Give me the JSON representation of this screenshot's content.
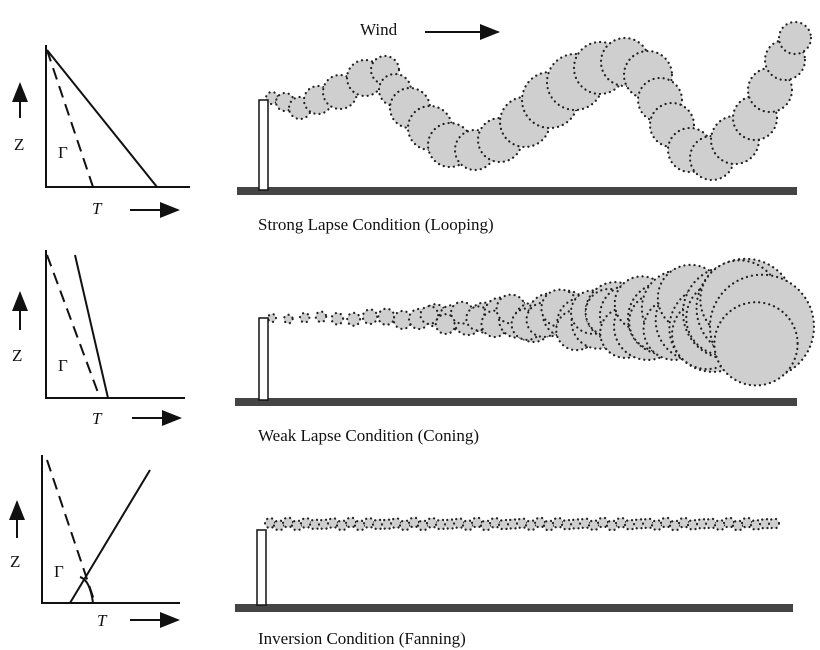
{
  "wind_label": "Wind",
  "panels": [
    {
      "z_label": "Z",
      "t_label": "T",
      "gamma_label": "Γ",
      "caption": "Strong Lapse Condition (Looping)"
    },
    {
      "z_label": "Z",
      "t_label": "T",
      "gamma_label": "Γ",
      "caption": "Weak Lapse Condition (Coning)"
    },
    {
      "z_label": "Z",
      "t_label": "T",
      "gamma_label": "Γ",
      "caption": "Inversion Condition (Fanning)"
    }
  ]
}
